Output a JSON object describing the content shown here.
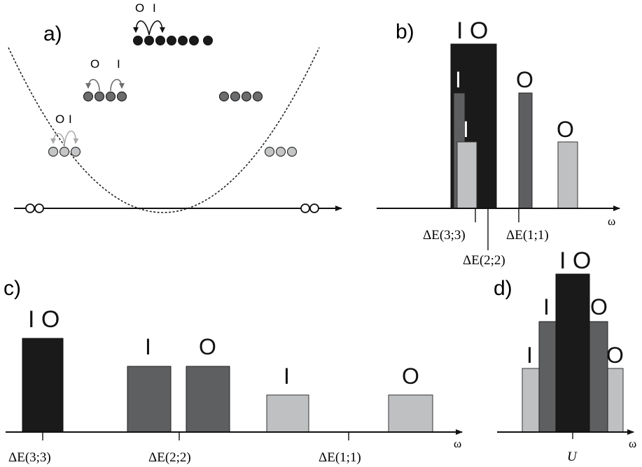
{
  "colors": {
    "black": "#1a1a1a",
    "dark_gray": "#5e5f61",
    "light_gray": "#bfc0c2",
    "stroke": "#222222",
    "hop_dark": "#111111",
    "hop_mid": "#6d6d6d",
    "hop_light": "#a9a9a9"
  },
  "panel_a": {
    "label": "a)",
    "top_hop_labels": [
      "O",
      "I"
    ],
    "mid_hop_labels": [
      "O",
      "I"
    ],
    "low_hop_labels": [
      "O",
      "I"
    ]
  },
  "panel_b": {
    "label": "b)",
    "axis_label": "ω",
    "bar_labels": [
      "I O",
      "I",
      "I",
      "O",
      "O"
    ],
    "tick_labels": [
      "ΔE(3;3)",
      "ΔE(2;2)",
      "ΔE(1;1)"
    ]
  },
  "panel_c": {
    "label": "c)",
    "axis_label": "ω",
    "bar_labels": [
      "I O",
      "I",
      "O",
      "I",
      "O"
    ],
    "tick_labels": [
      "ΔE(3;3)",
      "ΔE(2;2)",
      "ΔE(1;1)"
    ]
  },
  "panel_d": {
    "label": "d)",
    "axis_label": "ω",
    "bar_labels": [
      "I O",
      "I",
      "O",
      "I",
      "O"
    ],
    "tick_label": "U"
  }
}
